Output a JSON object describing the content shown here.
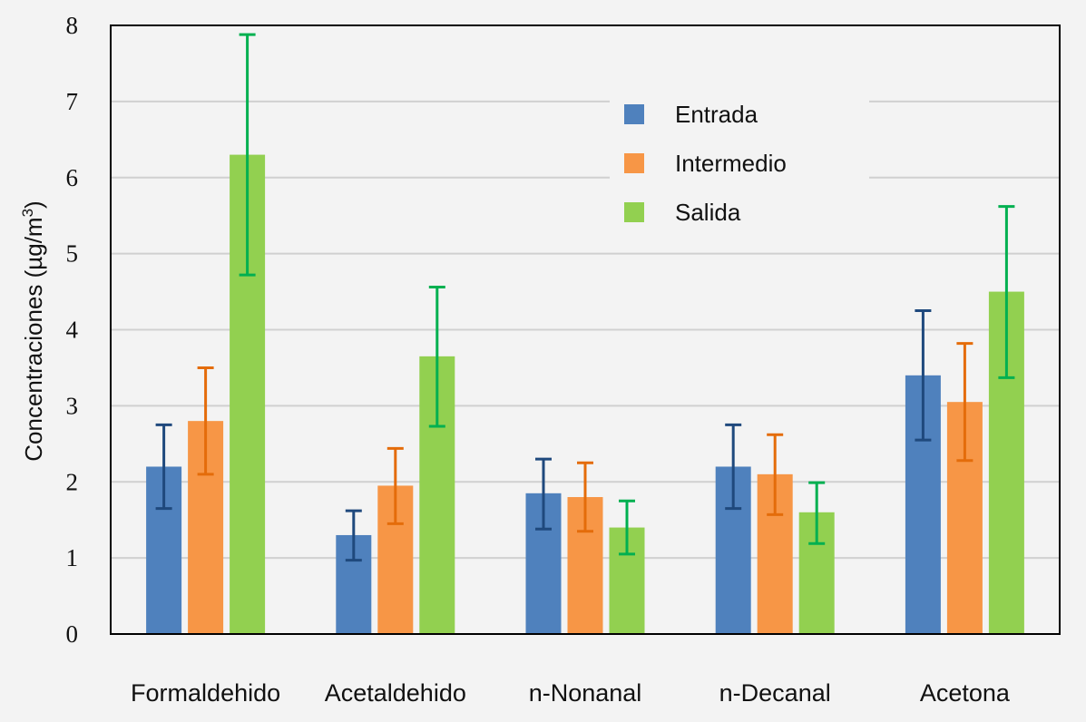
{
  "chart_data": {
    "type": "bar",
    "ylabel": "Concentraciones (µg/m³)",
    "ylabel_main": "Concentraciones (µg/m",
    "ylabel_sup": "3",
    "ylabel_close": ")",
    "ylim": [
      0,
      8
    ],
    "yticks": [
      "0",
      "1",
      "2",
      "3",
      "4",
      "5",
      "6",
      "7",
      "8"
    ],
    "grid": true,
    "legend_position": "top-right",
    "categories": [
      "Formaldehido",
      "Acetaldehido",
      "n-Nonanal",
      "n-Decanal",
      "Acetona"
    ],
    "series": [
      {
        "name": "Entrada",
        "color": "#4f81bd",
        "error_color": "#1f497d",
        "values": [
          2.2,
          1.3,
          1.85,
          2.2,
          3.4
        ],
        "err_low": [
          1.65,
          0.97,
          1.38,
          1.65,
          2.55
        ],
        "err_high": [
          2.75,
          1.62,
          2.3,
          2.75,
          4.25
        ]
      },
      {
        "name": "Intermedio",
        "color": "#f79646",
        "error_color": "#e46c0a",
        "values": [
          2.8,
          1.95,
          1.8,
          2.1,
          3.05
        ],
        "err_low": [
          2.1,
          1.45,
          1.35,
          1.57,
          2.28
        ],
        "err_high": [
          3.5,
          2.44,
          2.25,
          2.62,
          3.82
        ]
      },
      {
        "name": "Salida",
        "color": "#92d050",
        "error_color": "#00b050",
        "values": [
          6.3,
          3.65,
          1.4,
          1.6,
          4.5
        ],
        "err_low": [
          4.72,
          2.73,
          1.05,
          1.19,
          3.37
        ],
        "err_high": [
          7.88,
          4.56,
          1.75,
          1.99,
          5.62
        ]
      }
    ]
  }
}
